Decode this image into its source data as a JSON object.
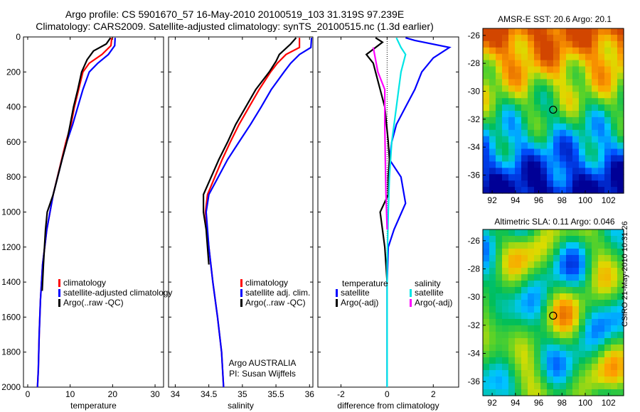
{
  "header": {
    "line1": "Argo profile: CS 5901670_57 16-May-2010 20100519_103 31.319S 97.239E",
    "line2": "Climatology: CARS2009. Satellite-adjusted climatology: synTS_20100515.nc (1.3d earlier)"
  },
  "side": {
    "sst_title": "AMSR-E SST: 20.6 Argo: 20.1",
    "sla_title": "Altimetric SLA: 0.11 Argo: 0.046",
    "stamp": "CSIRO 21-May-2010 10:31:26"
  },
  "colors": {
    "climatology": "#ff0000",
    "satellite": "#0000ff",
    "argo": "#000000",
    "sat_sal": "#00e5e5",
    "argo_sal": "#ff00ff"
  },
  "chart_data": [
    {
      "type": "line",
      "xlabel": "temperature",
      "ylim": [
        2000,
        0
      ],
      "xlim": [
        -1,
        32
      ],
      "xticks": [
        "0",
        "10",
        "20",
        "30"
      ],
      "yticks": [
        "0",
        "200",
        "400",
        "600",
        "800",
        "1000",
        "1200",
        "1400",
        "1600",
        "1800",
        "2000"
      ],
      "legend": [
        "climatology",
        "satellite-adjusted climatology",
        "Argo(..raw -QC)"
      ],
      "series": [
        {
          "name": "climatology",
          "x": [
            19.8,
            19.6,
            17.5,
            14.5,
            13.0,
            12.0,
            11.0,
            10.2,
            9.0,
            8.0,
            6.0,
            4.5,
            3.5,
            3.0,
            2.7,
            2.5,
            2.3
          ],
          "depth": [
            5,
            50,
            100,
            150,
            200,
            300,
            400,
            500,
            600,
            700,
            900,
            1100,
            1300,
            1500,
            1700,
            1900,
            2000
          ]
        },
        {
          "name": "satellite-adjusted climatology",
          "x": [
            20.6,
            20.5,
            19.0,
            16.5,
            14.5,
            13.0,
            11.8,
            10.6,
            9.2,
            8.1,
            6.0,
            4.5,
            3.5,
            3.0,
            2.7,
            2.5,
            2.3
          ],
          "depth": [
            5,
            50,
            100,
            150,
            200,
            300,
            400,
            500,
            600,
            700,
            900,
            1100,
            1300,
            1500,
            1700,
            1900,
            2000
          ]
        },
        {
          "name": "Argo(..raw -QC)",
          "x": [
            19.5,
            18.5,
            15.5,
            14.0,
            12.7,
            11.8,
            10.8,
            10.0,
            9.2,
            8.1,
            6.0,
            4.6,
            4.2,
            3.7,
            3.4
          ],
          "depth": [
            5,
            40,
            80,
            130,
            200,
            300,
            400,
            500,
            600,
            700,
            900,
            1000,
            1100,
            1300,
            1450
          ]
        }
      ]
    },
    {
      "type": "line",
      "xlabel": "salinity",
      "ylim": [
        2000,
        0
      ],
      "xlim": [
        33.9,
        36.05
      ],
      "xticks": [
        "34",
        "34.5",
        "35",
        "35.5",
        "36"
      ],
      "legend": [
        "climatology",
        "satellite adj. clim.",
        "Argo(..raw -QC)"
      ],
      "annotation": [
        "Argo AUSTRALIA",
        "PI: Susan Wijffels"
      ],
      "series": [
        {
          "name": "climatology",
          "x": [
            35.85,
            35.85,
            35.65,
            35.52,
            35.42,
            35.25,
            35.1,
            34.95,
            34.82,
            34.7,
            34.48,
            34.45,
            34.5,
            34.56,
            34.63,
            34.69,
            34.72
          ],
          "depth": [
            5,
            60,
            100,
            150,
            200,
            300,
            400,
            500,
            600,
            700,
            900,
            1000,
            1200,
            1400,
            1600,
            1800,
            2000
          ]
        },
        {
          "name": "satellite adj. clim.",
          "x": [
            36.03,
            36.02,
            35.85,
            35.72,
            35.62,
            35.43,
            35.28,
            35.12,
            34.95,
            34.78,
            34.5,
            34.46,
            34.5,
            34.56,
            34.63,
            34.69,
            34.72
          ],
          "depth": [
            5,
            60,
            100,
            150,
            200,
            300,
            400,
            500,
            600,
            700,
            900,
            1000,
            1200,
            1400,
            1600,
            1800,
            2000
          ]
        },
        {
          "name": "Argo(..raw -QC)",
          "x": [
            35.8,
            35.72,
            35.55,
            35.5,
            35.4,
            35.2,
            35.05,
            34.9,
            34.78,
            34.65,
            34.42,
            34.42,
            34.46,
            34.5
          ],
          "depth": [
            5,
            40,
            100,
            140,
            200,
            300,
            400,
            500,
            600,
            700,
            900,
            1000,
            1100,
            1300
          ]
        }
      ]
    },
    {
      "type": "line",
      "xlabel": "difference from climatology",
      "ylim": [
        2000,
        0
      ],
      "xlim": [
        -3,
        3.1
      ],
      "xticks": [
        "-2",
        "0",
        "2"
      ],
      "legend_title_temp": "temperature",
      "legend_title_sal": "salinity",
      "legend": [
        "satellite",
        "Argo(-adj)",
        "satellite",
        "Argo(-adj)"
      ],
      "series": [
        {
          "name": "satellite",
          "x": [
            0.8,
            1.2,
            2.7,
            2.0,
            1.5,
            1.2,
            0.8,
            0.4,
            0.2,
            0.1,
            0.6,
            0.8,
            0.3,
            0.05,
            0.0,
            0.0,
            0.0
          ],
          "depth": [
            5,
            20,
            60,
            120,
            200,
            300,
            400,
            500,
            600,
            700,
            800,
            950,
            1100,
            1200,
            1400,
            1700,
            2000
          ]
        },
        {
          "name": "Argo(-adj)",
          "x": [
            -0.5,
            -0.2,
            -0.9,
            -0.6,
            -0.5,
            -0.3,
            -0.1,
            0.05,
            0.1,
            0.05,
            0.05,
            -0.3,
            -0.1,
            0.0
          ],
          "depth": [
            5,
            30,
            100,
            150,
            200,
            300,
            400,
            600,
            700,
            800,
            900,
            1000,
            1200,
            1400
          ]
        },
        {
          "name": "satellite",
          "x": [
            0.4,
            0.6,
            0.8,
            0.6,
            0.5,
            0.4,
            0.2,
            0.1,
            0.05,
            0.0,
            0.0,
            0.0
          ],
          "depth": [
            5,
            60,
            100,
            200,
            300,
            400,
            600,
            800,
            1000,
            1300,
            1600,
            2000
          ]
        },
        {
          "name": "Argo(-adj)",
          "x": [
            -0.6,
            -0.4,
            -0.1,
            -0.1,
            -0.08,
            -0.05,
            0.0
          ],
          "depth": [
            60,
            200,
            300,
            500,
            700,
            900,
            1100
          ]
        }
      ]
    },
    {
      "type": "heatmap",
      "title": "AMSR-E SST: 20.6 Argo: 20.1",
      "xticks": [
        "92",
        "94",
        "96",
        "98",
        "100",
        "102"
      ],
      "yticks": [
        "-26",
        "-28",
        "-30",
        "-32",
        "-34",
        "-36"
      ],
      "xlim": [
        91.2,
        103.3
      ],
      "ylim": [
        -37.3,
        -25.5
      ],
      "argo_position": [
        97.24,
        -31.32
      ]
    },
    {
      "type": "heatmap",
      "title": "Altimetric SLA: 0.11 Argo: 0.046",
      "xticks": [
        "92",
        "94",
        "96",
        "98",
        "100",
        "102"
      ],
      "yticks": [
        "-26",
        "-28",
        "-30",
        "-32",
        "-34",
        "-36"
      ],
      "xlim": [
        91.2,
        103.3
      ],
      "ylim": [
        -37.0,
        -25.2
      ],
      "argo_position": [
        97.24,
        -31.32
      ]
    }
  ]
}
